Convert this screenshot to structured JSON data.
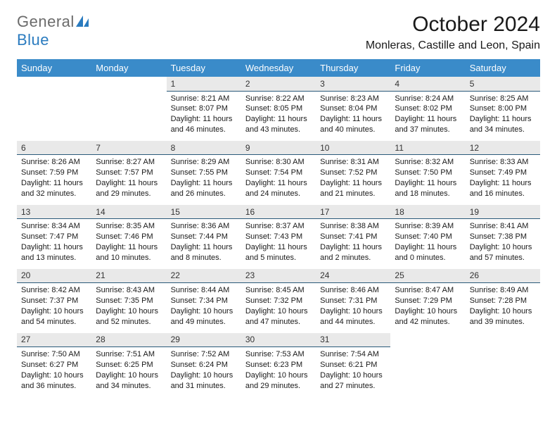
{
  "logo": {
    "general": "General",
    "blue": "Blue"
  },
  "title": "October 2024",
  "location": "Monleras, Castille and Leon, Spain",
  "colors": {
    "header_bg": "#3a8bc9",
    "header_text": "#ffffff",
    "daynum_bg": "#e9e9e9",
    "daynum_border": "#2a5a7a",
    "body_text": "#1a1a1a",
    "logo_gray": "#6b6b6b",
    "logo_blue": "#2a7bbf"
  },
  "weekdays": [
    "Sunday",
    "Monday",
    "Tuesday",
    "Wednesday",
    "Thursday",
    "Friday",
    "Saturday"
  ],
  "weeks": [
    {
      "nums": [
        "",
        "",
        "1",
        "2",
        "3",
        "4",
        "5"
      ],
      "cells": [
        null,
        null,
        {
          "sunrise": "Sunrise: 8:21 AM",
          "sunset": "Sunset: 8:07 PM",
          "daylight": "Daylight: 11 hours and 46 minutes."
        },
        {
          "sunrise": "Sunrise: 8:22 AM",
          "sunset": "Sunset: 8:05 PM",
          "daylight": "Daylight: 11 hours and 43 minutes."
        },
        {
          "sunrise": "Sunrise: 8:23 AM",
          "sunset": "Sunset: 8:04 PM",
          "daylight": "Daylight: 11 hours and 40 minutes."
        },
        {
          "sunrise": "Sunrise: 8:24 AM",
          "sunset": "Sunset: 8:02 PM",
          "daylight": "Daylight: 11 hours and 37 minutes."
        },
        {
          "sunrise": "Sunrise: 8:25 AM",
          "sunset": "Sunset: 8:00 PM",
          "daylight": "Daylight: 11 hours and 34 minutes."
        }
      ]
    },
    {
      "nums": [
        "6",
        "7",
        "8",
        "9",
        "10",
        "11",
        "12"
      ],
      "cells": [
        {
          "sunrise": "Sunrise: 8:26 AM",
          "sunset": "Sunset: 7:59 PM",
          "daylight": "Daylight: 11 hours and 32 minutes."
        },
        {
          "sunrise": "Sunrise: 8:27 AM",
          "sunset": "Sunset: 7:57 PM",
          "daylight": "Daylight: 11 hours and 29 minutes."
        },
        {
          "sunrise": "Sunrise: 8:29 AM",
          "sunset": "Sunset: 7:55 PM",
          "daylight": "Daylight: 11 hours and 26 minutes."
        },
        {
          "sunrise": "Sunrise: 8:30 AM",
          "sunset": "Sunset: 7:54 PM",
          "daylight": "Daylight: 11 hours and 24 minutes."
        },
        {
          "sunrise": "Sunrise: 8:31 AM",
          "sunset": "Sunset: 7:52 PM",
          "daylight": "Daylight: 11 hours and 21 minutes."
        },
        {
          "sunrise": "Sunrise: 8:32 AM",
          "sunset": "Sunset: 7:50 PM",
          "daylight": "Daylight: 11 hours and 18 minutes."
        },
        {
          "sunrise": "Sunrise: 8:33 AM",
          "sunset": "Sunset: 7:49 PM",
          "daylight": "Daylight: 11 hours and 16 minutes."
        }
      ]
    },
    {
      "nums": [
        "13",
        "14",
        "15",
        "16",
        "17",
        "18",
        "19"
      ],
      "cells": [
        {
          "sunrise": "Sunrise: 8:34 AM",
          "sunset": "Sunset: 7:47 PM",
          "daylight": "Daylight: 11 hours and 13 minutes."
        },
        {
          "sunrise": "Sunrise: 8:35 AM",
          "sunset": "Sunset: 7:46 PM",
          "daylight": "Daylight: 11 hours and 10 minutes."
        },
        {
          "sunrise": "Sunrise: 8:36 AM",
          "sunset": "Sunset: 7:44 PM",
          "daylight": "Daylight: 11 hours and 8 minutes."
        },
        {
          "sunrise": "Sunrise: 8:37 AM",
          "sunset": "Sunset: 7:43 PM",
          "daylight": "Daylight: 11 hours and 5 minutes."
        },
        {
          "sunrise": "Sunrise: 8:38 AM",
          "sunset": "Sunset: 7:41 PM",
          "daylight": "Daylight: 11 hours and 2 minutes."
        },
        {
          "sunrise": "Sunrise: 8:39 AM",
          "sunset": "Sunset: 7:40 PM",
          "daylight": "Daylight: 11 hours and 0 minutes."
        },
        {
          "sunrise": "Sunrise: 8:41 AM",
          "sunset": "Sunset: 7:38 PM",
          "daylight": "Daylight: 10 hours and 57 minutes."
        }
      ]
    },
    {
      "nums": [
        "20",
        "21",
        "22",
        "23",
        "24",
        "25",
        "26"
      ],
      "cells": [
        {
          "sunrise": "Sunrise: 8:42 AM",
          "sunset": "Sunset: 7:37 PM",
          "daylight": "Daylight: 10 hours and 54 minutes."
        },
        {
          "sunrise": "Sunrise: 8:43 AM",
          "sunset": "Sunset: 7:35 PM",
          "daylight": "Daylight: 10 hours and 52 minutes."
        },
        {
          "sunrise": "Sunrise: 8:44 AM",
          "sunset": "Sunset: 7:34 PM",
          "daylight": "Daylight: 10 hours and 49 minutes."
        },
        {
          "sunrise": "Sunrise: 8:45 AM",
          "sunset": "Sunset: 7:32 PM",
          "daylight": "Daylight: 10 hours and 47 minutes."
        },
        {
          "sunrise": "Sunrise: 8:46 AM",
          "sunset": "Sunset: 7:31 PM",
          "daylight": "Daylight: 10 hours and 44 minutes."
        },
        {
          "sunrise": "Sunrise: 8:47 AM",
          "sunset": "Sunset: 7:29 PM",
          "daylight": "Daylight: 10 hours and 42 minutes."
        },
        {
          "sunrise": "Sunrise: 8:49 AM",
          "sunset": "Sunset: 7:28 PM",
          "daylight": "Daylight: 10 hours and 39 minutes."
        }
      ]
    },
    {
      "nums": [
        "27",
        "28",
        "29",
        "30",
        "31",
        "",
        ""
      ],
      "cells": [
        {
          "sunrise": "Sunrise: 7:50 AM",
          "sunset": "Sunset: 6:27 PM",
          "daylight": "Daylight: 10 hours and 36 minutes."
        },
        {
          "sunrise": "Sunrise: 7:51 AM",
          "sunset": "Sunset: 6:25 PM",
          "daylight": "Daylight: 10 hours and 34 minutes."
        },
        {
          "sunrise": "Sunrise: 7:52 AM",
          "sunset": "Sunset: 6:24 PM",
          "daylight": "Daylight: 10 hours and 31 minutes."
        },
        {
          "sunrise": "Sunrise: 7:53 AM",
          "sunset": "Sunset: 6:23 PM",
          "daylight": "Daylight: 10 hours and 29 minutes."
        },
        {
          "sunrise": "Sunrise: 7:54 AM",
          "sunset": "Sunset: 6:21 PM",
          "daylight": "Daylight: 10 hours and 27 minutes."
        },
        null,
        null
      ]
    }
  ]
}
